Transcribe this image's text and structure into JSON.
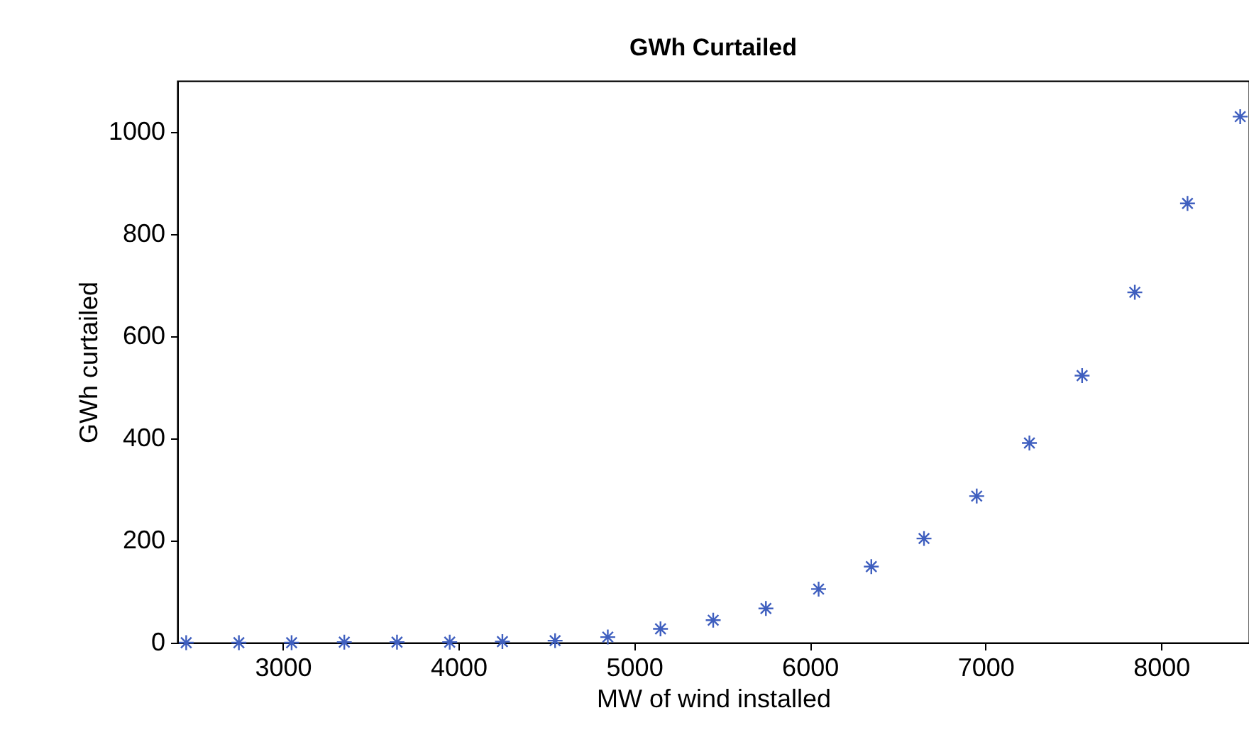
{
  "chart_data": {
    "type": "scatter",
    "title": "GWh Curtailed",
    "xlabel": "MW of wind installed",
    "ylabel": "GWh curtailed",
    "x": [
      2450,
      2750,
      3050,
      3350,
      3650,
      3950,
      4250,
      4550,
      4850,
      5150,
      5450,
      5750,
      6050,
      6350,
      6650,
      6950,
      7250,
      7550,
      7850,
      8150,
      8450
    ],
    "series": [
      {
        "color": "#3f5fbf",
        "values": [
          0,
          0,
          0,
          1,
          1,
          1,
          2,
          4,
          11,
          27,
          44,
          67,
          105,
          149,
          204,
          287,
          391,
          523,
          686,
          860,
          1030
        ]
      }
    ],
    "xlim": [
      2400,
      8500
    ],
    "xticks": [
      3000,
      4000,
      5000,
      6000,
      7000,
      8000
    ],
    "ylim": [
      0,
      1100
    ],
    "yticks": [
      0,
      200,
      400,
      600,
      800,
      1000
    ],
    "grid": false,
    "marker": "cross"
  }
}
